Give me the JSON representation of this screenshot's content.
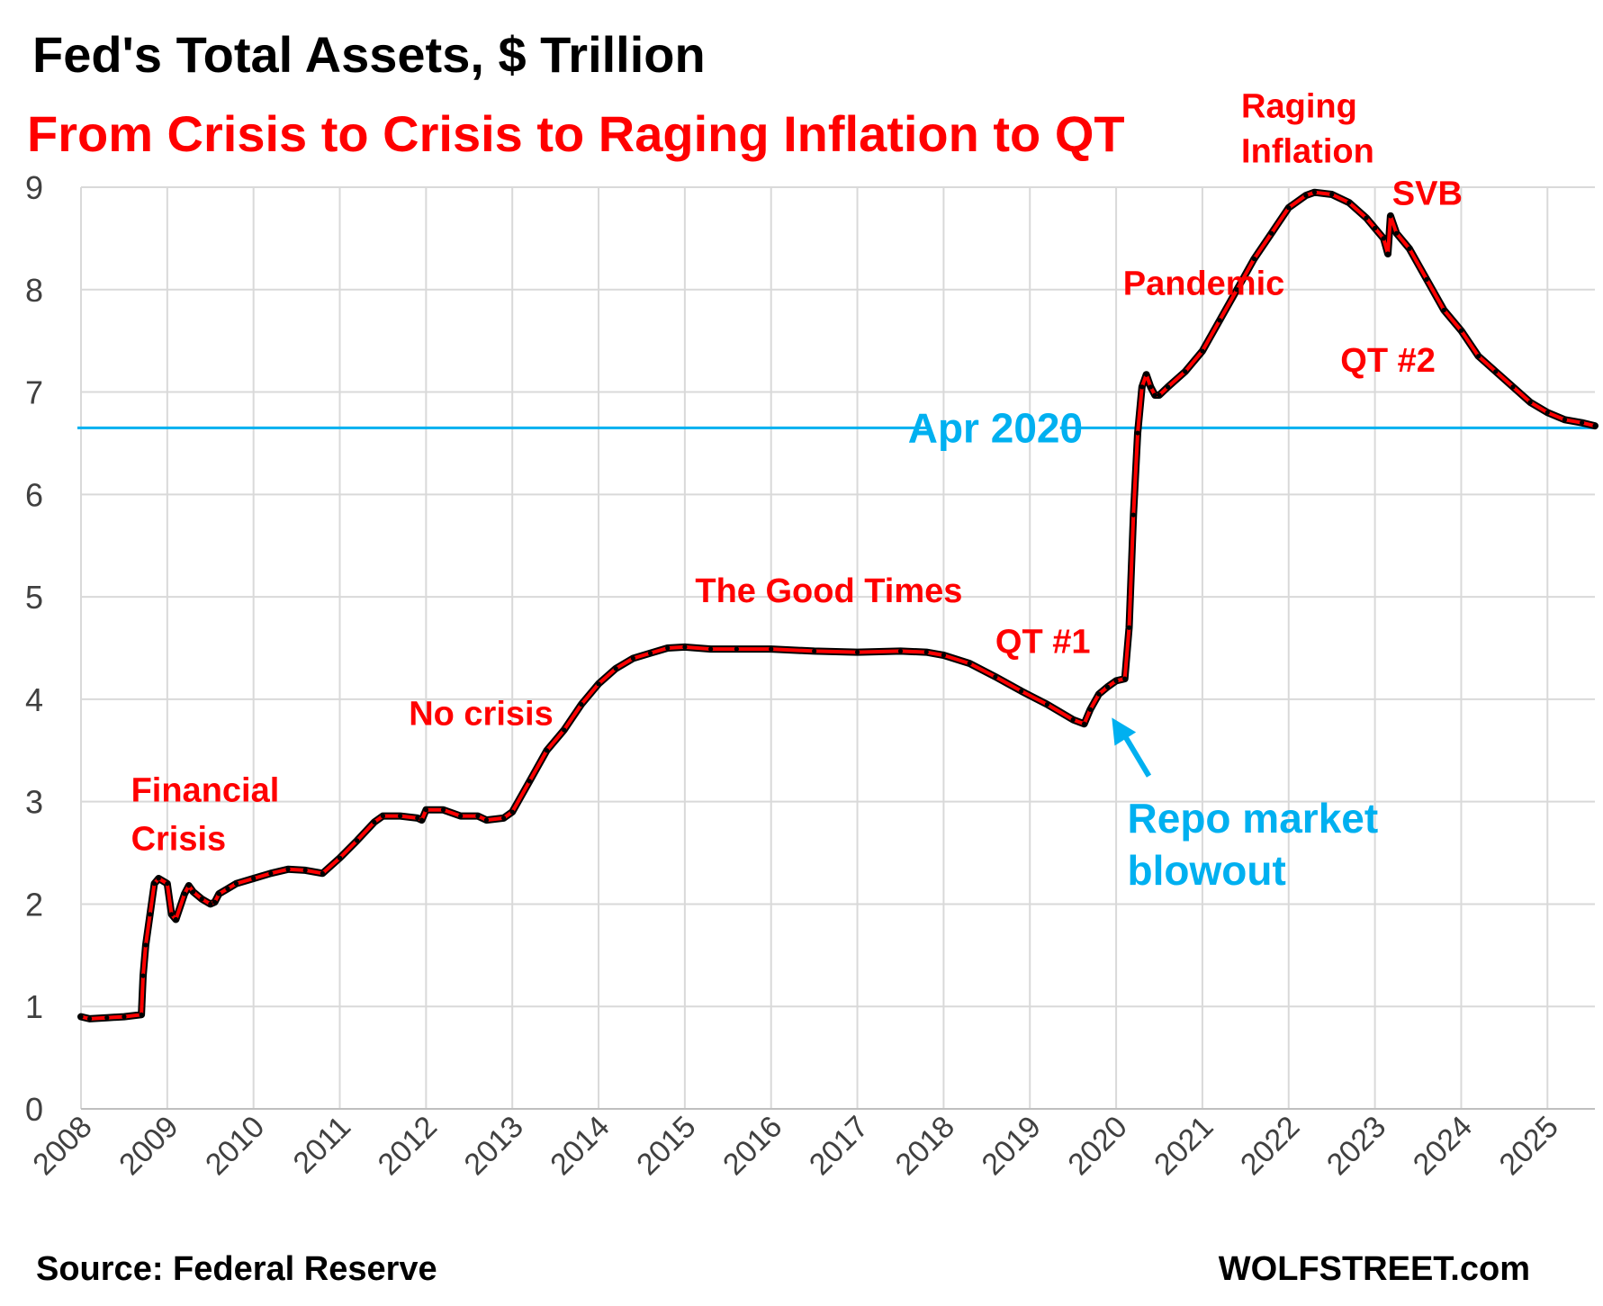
{
  "chart_data": {
    "type": "line",
    "title": "Fed's Total Assets, $ Trillion",
    "subtitle": "From Crisis to Crisis to Raging Inflation to QT",
    "xlabel": "",
    "ylabel": "",
    "xlim": [
      2008,
      2025.55
    ],
    "ylim": [
      0,
      9
    ],
    "grid": true,
    "legend": "none",
    "x_ticks": [
      "2008",
      "2009",
      "2010",
      "2011",
      "2012",
      "2013",
      "2014",
      "2015",
      "2016",
      "2017",
      "2018",
      "2019",
      "2020",
      "2021",
      "2022",
      "2023",
      "2024",
      "2025"
    ],
    "y_ticks": [
      "0",
      "1",
      "2",
      "3",
      "4",
      "5",
      "6",
      "7",
      "8",
      "9"
    ],
    "series": [
      {
        "color": "#ff0000",
        "marker_color": "#000000",
        "x": [
          2008.0,
          2008.1,
          2008.3,
          2008.5,
          2008.7,
          2008.72,
          2008.75,
          2008.8,
          2008.85,
          2008.9,
          2009.0,
          2009.05,
          2009.1,
          2009.2,
          2009.25,
          2009.3,
          2009.4,
          2009.5,
          2009.55,
          2009.6,
          2009.7,
          2009.8,
          2010.0,
          2010.2,
          2010.4,
          2010.6,
          2010.8,
          2011.0,
          2011.2,
          2011.4,
          2011.5,
          2011.7,
          2011.9,
          2011.95,
          2012.0,
          2012.2,
          2012.4,
          2012.6,
          2012.7,
          2012.9,
          2013.0,
          2013.2,
          2013.4,
          2013.6,
          2013.8,
          2014.0,
          2014.2,
          2014.4,
          2014.6,
          2014.8,
          2015.0,
          2015.3,
          2015.6,
          2016.0,
          2016.5,
          2017.0,
          2017.5,
          2017.8,
          2018.0,
          2018.3,
          2018.6,
          2018.9,
          2019.2,
          2019.5,
          2019.63,
          2019.7,
          2019.8,
          2019.9,
          2020.0,
          2020.1,
          2020.15,
          2020.2,
          2020.25,
          2020.3,
          2020.35,
          2020.4,
          2020.45,
          2020.5,
          2020.6,
          2020.8,
          2021.0,
          2021.2,
          2021.4,
          2021.6,
          2021.8,
          2022.0,
          2022.2,
          2022.3,
          2022.5,
          2022.7,
          2022.9,
          2023.0,
          2023.1,
          2023.15,
          2023.18,
          2023.25,
          2023.4,
          2023.6,
          2023.8,
          2024.0,
          2024.2,
          2024.4,
          2024.6,
          2024.8,
          2025.0,
          2025.2,
          2025.4,
          2025.55
        ],
        "values": [
          0.9,
          0.88,
          0.89,
          0.9,
          0.92,
          1.3,
          1.6,
          1.9,
          2.2,
          2.25,
          2.2,
          1.9,
          1.85,
          2.1,
          2.18,
          2.12,
          2.05,
          2.0,
          2.02,
          2.1,
          2.15,
          2.2,
          2.25,
          2.3,
          2.34,
          2.33,
          2.3,
          2.45,
          2.62,
          2.8,
          2.86,
          2.86,
          2.84,
          2.82,
          2.92,
          2.92,
          2.86,
          2.86,
          2.82,
          2.84,
          2.9,
          3.2,
          3.5,
          3.7,
          3.95,
          4.15,
          4.3,
          4.4,
          4.45,
          4.5,
          4.51,
          4.49,
          4.49,
          4.49,
          4.47,
          4.46,
          4.47,
          4.46,
          4.43,
          4.35,
          4.22,
          4.08,
          3.95,
          3.8,
          3.76,
          3.9,
          4.05,
          4.12,
          4.18,
          4.2,
          4.7,
          5.8,
          6.6,
          7.05,
          7.17,
          7.05,
          6.97,
          6.97,
          7.05,
          7.2,
          7.4,
          7.7,
          8.0,
          8.3,
          8.55,
          8.8,
          8.92,
          8.95,
          8.93,
          8.85,
          8.7,
          8.6,
          8.5,
          8.35,
          8.72,
          8.55,
          8.4,
          8.1,
          7.8,
          7.6,
          7.35,
          7.2,
          7.05,
          6.9,
          6.8,
          6.73,
          6.7,
          6.67
        ]
      }
    ],
    "reference_lines": [
      {
        "y": 6.65,
        "label": "Apr 2020",
        "color": "#00b0f0"
      }
    ],
    "annotations": [
      {
        "id": "financial-crisis",
        "lines": [
          "Financial",
          "Crisis"
        ],
        "color": "#ff0000"
      },
      {
        "id": "no-crisis",
        "lines": [
          "No crisis"
        ],
        "color": "#ff0000"
      },
      {
        "id": "good-times",
        "lines": [
          "The Good Times"
        ],
        "color": "#ff0000"
      },
      {
        "id": "qt1",
        "lines": [
          "QT #1"
        ],
        "color": "#ff0000"
      },
      {
        "id": "pandemic",
        "lines": [
          "Pandemic"
        ],
        "color": "#ff0000"
      },
      {
        "id": "raging-inflation",
        "lines": [
          "Raging",
          "Inflation"
        ],
        "color": "#ff0000"
      },
      {
        "id": "svb",
        "lines": [
          "SVB"
        ],
        "color": "#ff0000"
      },
      {
        "id": "qt2",
        "lines": [
          "QT #2"
        ],
        "color": "#ff0000"
      },
      {
        "id": "repo-blowout",
        "lines": [
          "Repo market",
          "blowout"
        ],
        "color": "#00b0f0"
      }
    ]
  },
  "footer": {
    "source": "Source: Federal Reserve",
    "brand": "WOLFSTREET.com"
  },
  "colors": {
    "title": "#000000",
    "subtitle": "#ff0000",
    "annotation_red": "#ff0000",
    "annotation_blue": "#00b0f0",
    "grid": "#d9d9d9",
    "axis_text": "#404040"
  }
}
